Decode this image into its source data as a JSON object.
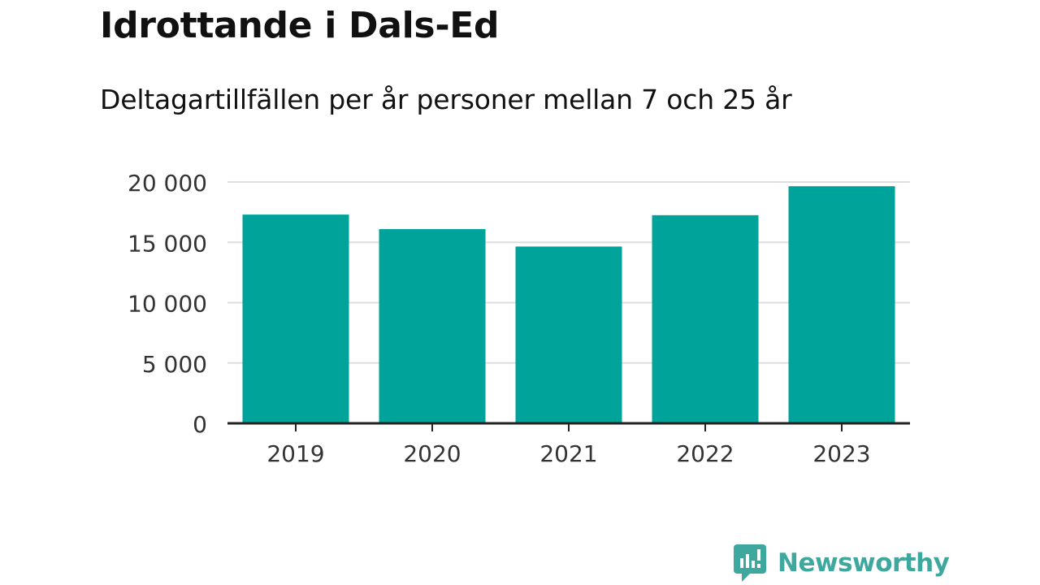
{
  "header": {
    "title": "Idrottande i Dals-Ed",
    "subtitle": "Deltagartillfällen per år personer mellan 7 och 25 år"
  },
  "chart_data": {
    "type": "bar",
    "categories": [
      "2019",
      "2020",
      "2021",
      "2022",
      "2023"
    ],
    "values": [
      17300,
      16100,
      14650,
      17250,
      19650
    ],
    "ylim": [
      0,
      20000
    ],
    "yticks": [
      0,
      5000,
      10000,
      15000,
      20000
    ],
    "ytick_labels": [
      "0",
      "5 000",
      "10 000",
      "15 000",
      "20 000"
    ],
    "grid": true,
    "bar_color": "#00a39a",
    "grid_color": "#dddddd",
    "axis_color": "#222222"
  },
  "footer": {
    "brand_name": "Newsworthy",
    "brand_color": "#3fa89e",
    "brand_icon": "newsworthy-logo-icon"
  }
}
